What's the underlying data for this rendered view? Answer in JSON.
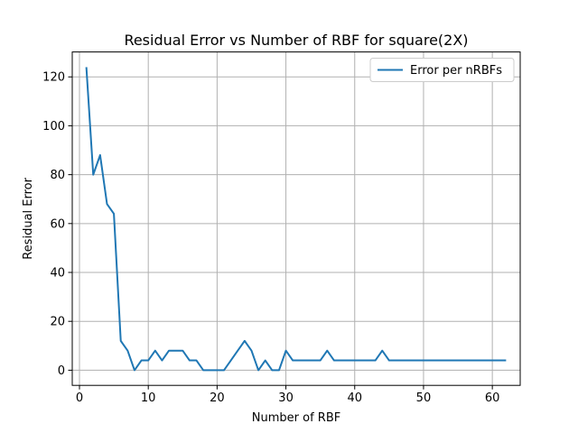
{
  "chart_data": {
    "type": "line",
    "title": "Residual Error vs Number of RBF for square(2X)",
    "xlabel": "Number of RBF",
    "ylabel": "Residual Error",
    "xlim": [
      -1.05,
      64.05
    ],
    "ylim": [
      -6.2,
      130.2
    ],
    "xticks": [
      0,
      10,
      20,
      30,
      40,
      50,
      60
    ],
    "yticks": [
      0,
      20,
      40,
      60,
      80,
      100,
      120
    ],
    "grid": true,
    "legend_position": "top-right",
    "series": [
      {
        "name": "Error per nRBFs",
        "color": "#1f77b4",
        "x": [
          1,
          2,
          3,
          4,
          5,
          6,
          7,
          8,
          9,
          10,
          11,
          12,
          13,
          14,
          15,
          16,
          17,
          18,
          19,
          20,
          21,
          22,
          23,
          24,
          25,
          26,
          27,
          28,
          29,
          30,
          31,
          32,
          33,
          34,
          35,
          36,
          37,
          38,
          39,
          40,
          41,
          42,
          43,
          44,
          45,
          46,
          47,
          48,
          49,
          50,
          51,
          52,
          53,
          54,
          55,
          56,
          57,
          58,
          59,
          60,
          61,
          62
        ],
        "y": [
          124,
          80,
          88,
          68,
          64,
          12,
          8,
          0,
          4,
          4,
          8,
          4,
          8,
          8,
          8,
          4,
          4,
          0,
          0,
          0,
          0,
          4,
          8,
          12,
          8,
          0,
          4,
          0,
          0,
          8,
          4,
          4,
          4,
          4,
          4,
          8,
          4,
          4,
          4,
          4,
          4,
          4,
          4,
          8,
          4,
          4,
          4,
          4,
          4,
          4,
          4,
          4,
          4,
          4,
          4,
          4,
          4,
          4,
          4,
          4,
          4,
          4
        ]
      }
    ]
  }
}
